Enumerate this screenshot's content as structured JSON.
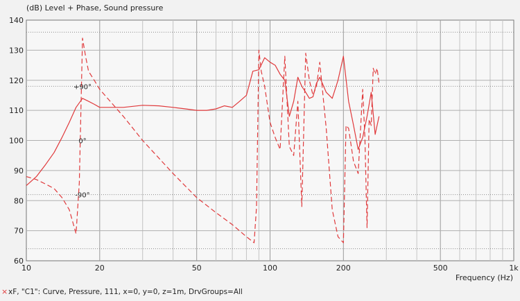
{
  "chart_data": {
    "type": "line",
    "title": "(dB)  Level + Phase, Sound pressure",
    "xlabel": "Frequency  (Hz)",
    "xscale": "log",
    "xlim": [
      10,
      1000
    ],
    "ylim": [
      60,
      140
    ],
    "yticks": [
      60,
      70,
      80,
      90,
      100,
      110,
      120,
      130,
      140
    ],
    "xtick_labels": [
      {
        "value": 10,
        "label": "10"
      },
      {
        "value": 20,
        "label": "20"
      },
      {
        "value": 50,
        "label": "50"
      },
      {
        "value": 100,
        "label": "100"
      },
      {
        "value": 200,
        "label": "200"
      },
      {
        "value": 500,
        "label": "500"
      },
      {
        "value": 1000,
        "label": "1k"
      }
    ],
    "phase_labels": [
      {
        "text": "+90°",
        "y": 118
      },
      {
        "text": "0°",
        "y": 100
      },
      {
        "text": "-90°",
        "y": 82
      }
    ],
    "phase_reference_lines": [
      136,
      118,
      82,
      64
    ],
    "grid": true,
    "series": [
      {
        "name": "Level",
        "style": "solid",
        "color": "#e0393b",
        "x": [
          10,
          11,
          12,
          13,
          14,
          15,
          16,
          17,
          18,
          19,
          20,
          22,
          25,
          30,
          35,
          40,
          45,
          50,
          55,
          60,
          65,
          70,
          75,
          80,
          85,
          90,
          95,
          100,
          105,
          110,
          115,
          120,
          125,
          130,
          135,
          140,
          145,
          150,
          155,
          160,
          170,
          180,
          190,
          200,
          210,
          220,
          230,
          240,
          250,
          260,
          270,
          280
        ],
        "y": [
          85,
          88,
          92,
          96,
          101,
          106,
          111,
          114,
          113,
          112,
          111,
          111,
          111,
          111.7,
          111.5,
          111,
          110.5,
          110,
          110,
          110.5,
          111.5,
          111,
          113,
          115,
          123,
          123.5,
          127.5,
          126,
          125,
          122,
          120,
          108,
          113,
          121,
          118,
          116,
          114,
          114.5,
          119,
          121,
          116,
          114,
          120,
          128,
          113,
          105,
          97,
          101,
          108,
          116,
          102,
          108
        ]
      },
      {
        "name": "Phase",
        "style": "dashed",
        "color": "#e0393b",
        "x": [
          10,
          11,
          12,
          13,
          14,
          15,
          16,
          16.5,
          17,
          17.5,
          18,
          19,
          20,
          25,
          30,
          40,
          50,
          60,
          70,
          80,
          86,
          88,
          90,
          92,
          95,
          100,
          105,
          110,
          115,
          120,
          125,
          130,
          135,
          140,
          145,
          150,
          155,
          160,
          170,
          180,
          190,
          200,
          205,
          210,
          220,
          230,
          240,
          245,
          250,
          255,
          260,
          265,
          270,
          275,
          280
        ],
        "y": [
          88,
          87,
          85.5,
          84,
          81,
          77,
          69,
          86,
          134,
          128,
          123,
          120,
          117,
          108,
          100,
          89,
          81,
          76,
          72,
          68,
          66,
          78,
          130,
          123,
          118,
          106,
          101,
          97,
          128,
          98,
          95,
          113,
          78,
          129,
          120,
          115,
          118,
          126,
          104,
          77,
          68,
          66,
          105,
          104,
          93,
          89,
          117,
          101,
          71,
          107,
          105,
          124,
          122,
          124,
          119
        ]
      }
    ]
  },
  "legend": {
    "marker": "×",
    "text": "xF, \"C1\": Curve, Pressure, 111, x=0, y=0, z=1m, DrvGroups=All"
  }
}
